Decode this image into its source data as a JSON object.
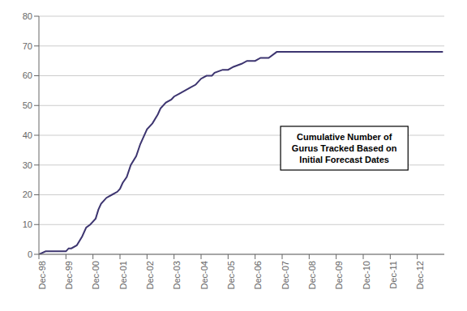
{
  "chart_data": {
    "type": "line",
    "x": [
      1998.0,
      1998.25,
      1999.0,
      1999.1,
      1999.2,
      1999.4,
      1999.6,
      1999.75,
      1999.9,
      2000.0,
      2000.1,
      2000.2,
      2000.3,
      2000.5,
      2000.7,
      2000.9,
      2001.0,
      2001.1,
      2001.25,
      2001.4,
      2001.6,
      2001.75,
      2002.0,
      2002.2,
      2002.4,
      2002.5,
      2002.7,
      2002.9,
      2003.0,
      2003.2,
      2003.4,
      2003.6,
      2003.8,
      2004.0,
      2004.2,
      2004.4,
      2004.5,
      2004.8,
      2005.0,
      2005.2,
      2005.5,
      2005.7,
      2006.0,
      2006.2,
      2006.5,
      2006.8,
      2007.0,
      2008.0,
      2009.0,
      2010.0,
      2011.0,
      2012.0,
      2012.95
    ],
    "values": [
      0,
      1,
      1,
      2,
      2,
      3,
      6,
      9,
      10,
      11,
      12,
      15,
      17,
      19,
      20,
      21,
      22,
      24,
      26,
      30,
      33,
      37,
      42,
      44,
      47,
      49,
      51,
      52,
      53,
      54,
      55,
      56,
      57,
      59,
      60,
      60,
      61,
      62,
      62,
      63,
      64,
      65,
      65,
      66,
      66,
      68,
      68,
      68,
      68,
      68,
      68,
      68,
      68
    ],
    "color": "#3d3570",
    "xlim": [
      1998,
      2013
    ],
    "xticks": [
      {
        "value": 1998,
        "label": "Dec-98"
      },
      {
        "value": 1999,
        "label": "Dec-99"
      },
      {
        "value": 2000,
        "label": "Dec-00"
      },
      {
        "value": 2001,
        "label": "Dec-01"
      },
      {
        "value": 2002,
        "label": "Dec-02"
      },
      {
        "value": 2003,
        "label": "Dec-03"
      },
      {
        "value": 2004,
        "label": "Dec-04"
      },
      {
        "value": 2005,
        "label": "Dec-05"
      },
      {
        "value": 2006,
        "label": "Dec-06"
      },
      {
        "value": 2007,
        "label": "Dec-07"
      },
      {
        "value": 2008,
        "label": "Dec-08"
      },
      {
        "value": 2009,
        "label": "Dec-09"
      },
      {
        "value": 2010,
        "label": "Dec-10"
      },
      {
        "value": 2011,
        "label": "Dec-11"
      },
      {
        "value": 2012,
        "label": "Dec-12"
      }
    ],
    "ylim": [
      0,
      80
    ],
    "yticks": [
      0,
      10,
      20,
      30,
      40,
      50,
      60,
      70,
      80
    ],
    "grid": true,
    "annotations": [
      {
        "text": "Cumulative Number of\nGurus Tracked Based on\nInitial Forecast Dates",
        "x": 2009.3,
        "y": 43
      }
    ]
  }
}
